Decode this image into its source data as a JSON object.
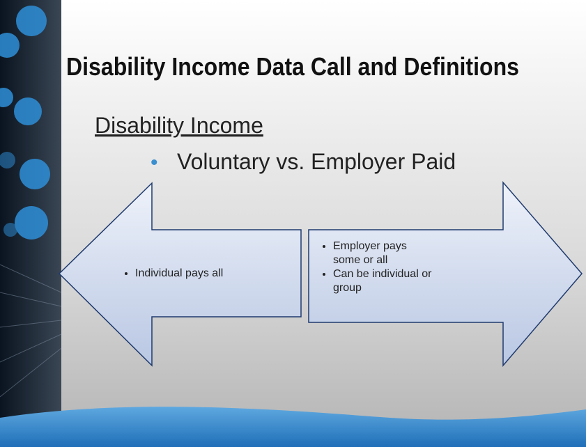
{
  "header": {
    "title": "Disability Income Data Call and Definitions"
  },
  "subtitle": "Disability Income",
  "bullet": "Voluntary vs. Employer Paid",
  "left_arrow": {
    "items": [
      "Individual pays all"
    ]
  },
  "right_arrow": {
    "items": [
      "Employer pays some or all",
      "Can be individual or group"
    ]
  }
}
